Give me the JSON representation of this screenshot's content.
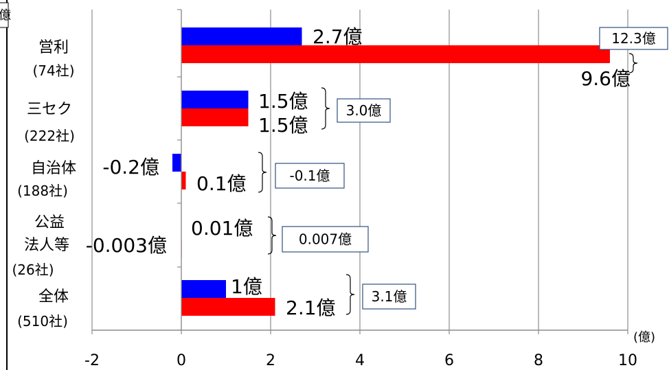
{
  "chart_data": {
    "type": "bar",
    "orientation": "horizontal",
    "xlabel": "(億)",
    "xlim": [
      -2,
      10
    ],
    "xticks": [
      "-2",
      "0",
      "2",
      "4",
      "6",
      "8",
      "10"
    ],
    "tick_values": [
      -2,
      0,
      2,
      4,
      6,
      8,
      10
    ],
    "grid": true,
    "corner_label": "億",
    "categories": [
      {
        "name": "営利",
        "count": "(74社)"
      },
      {
        "name": "三セク",
        "count": "(222社)"
      },
      {
        "name": "自治体",
        "count": "(188社)"
      },
      {
        "name": "公益",
        "name2": "法人等",
        "count": "(26社)"
      },
      {
        "name": "全体",
        "count": "(510社)"
      }
    ],
    "series": [
      {
        "color": "#0000ff",
        "values": [
          2.7,
          1.5,
          -0.2,
          -0.003,
          1.0
        ]
      },
      {
        "color": "#ff0000",
        "values": [
          9.6,
          1.5,
          0.1,
          0.01,
          2.1
        ]
      }
    ],
    "value_labels": [
      [
        "2.7億",
        "9.6億"
      ],
      [
        "1.5億",
        "1.5億"
      ],
      [
        "-0.2億",
        "0.1億"
      ],
      [
        "-0.003億",
        "0.01億"
      ],
      [
        "1億",
        "2.1億"
      ]
    ],
    "totals": [
      {
        "value": 12.3,
        "label": "12.3億"
      },
      {
        "value": 3.0,
        "label": "3.0億"
      },
      {
        "value": -0.1,
        "label": "-0.1億"
      },
      {
        "value": 0.007,
        "label": "0.007億"
      },
      {
        "value": 3.1,
        "label": "3.1億"
      }
    ]
  }
}
